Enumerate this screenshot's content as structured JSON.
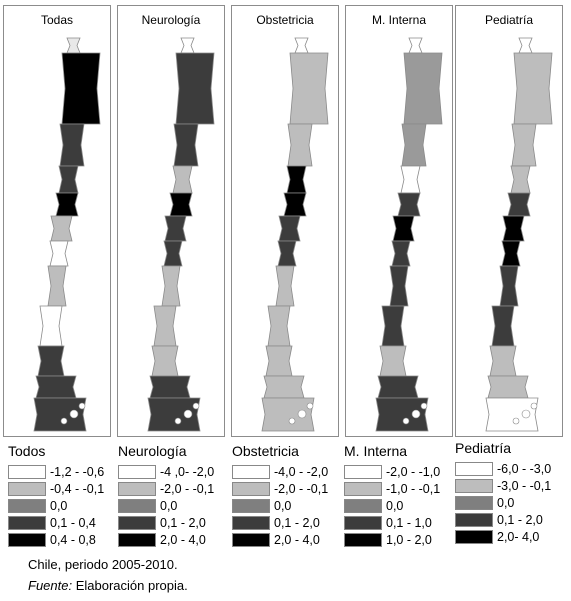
{
  "maps": [
    {
      "title": "Todas",
      "shades": [
        "#e8e8e8",
        "#000000",
        "#3c3c3c",
        "#3c3c3c",
        "#000000",
        "#bdbdbd",
        "#ffffff",
        "#bdbdbd",
        "#ffffff",
        "#3c3c3c",
        "#3c3c3c",
        "#3c3c3c"
      ]
    },
    {
      "title": "Neurología",
      "shades": [
        "#ffffff",
        "#3c3c3c",
        "#3c3c3c",
        "#bdbdbd",
        "#000000",
        "#3c3c3c",
        "#3c3c3c",
        "#bdbdbd",
        "#bdbdbd",
        "#bdbdbd",
        "#3c3c3c",
        "#3c3c3c"
      ]
    },
    {
      "title": "Obstetricia",
      "shades": [
        "#ffffff",
        "#bdbdbd",
        "#bdbdbd",
        "#000000",
        "#000000",
        "#3c3c3c",
        "#3c3c3c",
        "#bdbdbd",
        "#bdbdbd",
        "#bdbdbd",
        "#bdbdbd",
        "#bdbdbd"
      ]
    },
    {
      "title": "M. Interna",
      "shades": [
        "#ffffff",
        "#9a9a9a",
        "#9a9a9a",
        "#ffffff",
        "#3c3c3c",
        "#000000",
        "#3c3c3c",
        "#3c3c3c",
        "#3c3c3c",
        "#bdbdbd",
        "#3c3c3c",
        "#3c3c3c"
      ]
    },
    {
      "title": "Pediatría",
      "shades": [
        "#ffffff",
        "#bdbdbd",
        "#bdbdbd",
        "#bdbdbd",
        "#3c3c3c",
        "#000000",
        "#000000",
        "#3c3c3c",
        "#3c3c3c",
        "#bdbdbd",
        "#bdbdbd",
        "#ffffff"
      ]
    }
  ],
  "legends": [
    {
      "title": "Todos",
      "items": [
        {
          "label": "-1,2 - -0,6",
          "color": "#ffffff"
        },
        {
          "label": "-0,4 - -0,1",
          "color": "#bdbdbd"
        },
        {
          "label": "0,0",
          "color": "#7f7f7f"
        },
        {
          "label": "0,1 - 0,4",
          "color": "#3c3c3c"
        },
        {
          "label": "0,4 - 0,8",
          "color": "#000000"
        }
      ]
    },
    {
      "title": "Neurología",
      "items": [
        {
          "label": "-4 ,0- -2,0",
          "color": "#ffffff"
        },
        {
          "label": "-2,0 - -0,1",
          "color": "#bdbdbd"
        },
        {
          "label": "0,0",
          "color": "#7f7f7f"
        },
        {
          "label": "0,1 - 2,0",
          "color": "#3c3c3c"
        },
        {
          "label": "2,0 - 4,0",
          "color": "#000000"
        }
      ]
    },
    {
      "title": "Obstetricia",
      "items": [
        {
          "label": "-4,0 - -2,0",
          "color": "#ffffff"
        },
        {
          "label": "-2,0 - -0,1",
          "color": "#bdbdbd"
        },
        {
          "label": "0,0",
          "color": "#7f7f7f"
        },
        {
          "label": "0,1 - 2,0",
          "color": "#3c3c3c"
        },
        {
          "label": "2,0 - 4,0",
          "color": "#000000"
        }
      ]
    },
    {
      "title": "M. Interna",
      "items": [
        {
          "label": "-2,0 - -1,0",
          "color": "#ffffff"
        },
        {
          "label": "-1,0 - -0,1",
          "color": "#bdbdbd"
        },
        {
          "label": "0,0",
          "color": "#7f7f7f"
        },
        {
          "label": "0,1 - 1,0",
          "color": "#3c3c3c"
        },
        {
          "label": "1,0 - 2,0",
          "color": "#000000"
        }
      ]
    },
    {
      "title": "Pediatría",
      "items": [
        {
          "label": "-6,0 - -3,0",
          "color": "#ffffff"
        },
        {
          "label": "-3,0 - -0,1",
          "color": "#bdbdbd"
        },
        {
          "label": "0,0",
          "color": "#7f7f7f"
        },
        {
          "label": "0,1 - 2,0",
          "color": "#3c3c3c"
        },
        {
          "label": "2,0- 4,0",
          "color": "#000000"
        }
      ]
    }
  ],
  "footer": {
    "period": "Chile, periodo 2005-2010.",
    "source_label": "Fuente:",
    "source_text": " Elaboración propia."
  }
}
